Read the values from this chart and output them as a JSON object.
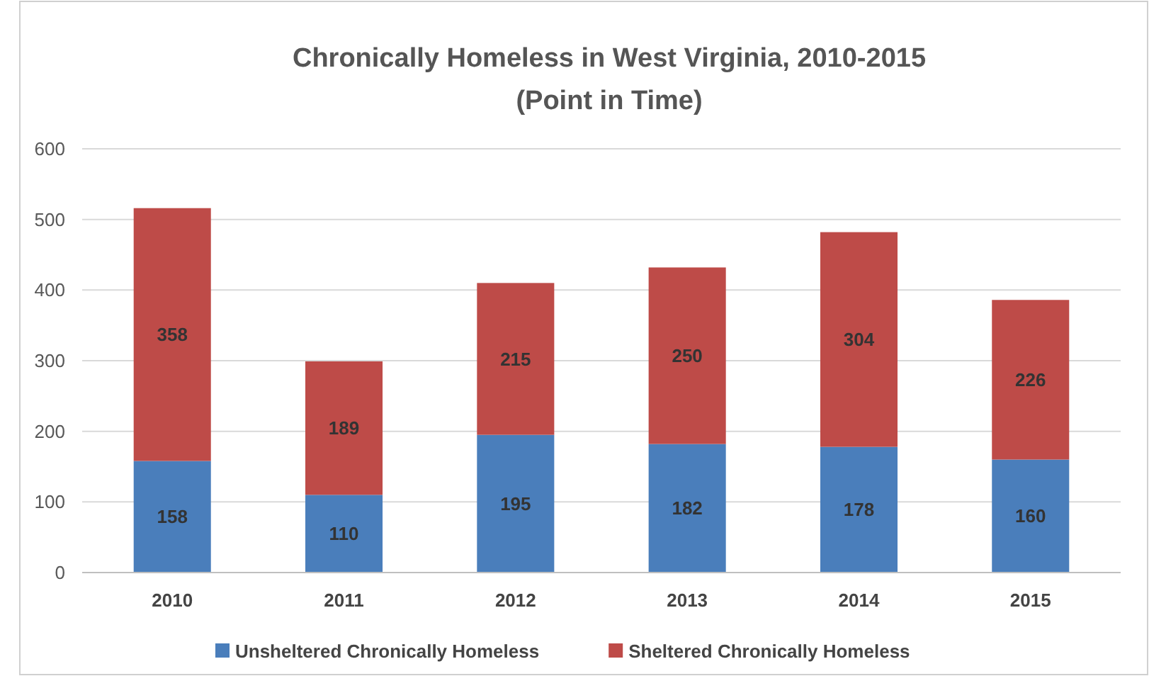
{
  "chart_data": {
    "type": "bar",
    "title": "Chronically Homeless in West Virginia, 2010-2015",
    "subtitle": "(Point in Time)",
    "categories": [
      "2010",
      "2011",
      "2012",
      "2013",
      "2014",
      "2015"
    ],
    "stacked": true,
    "series": [
      {
        "name": "Unsheltered Chronically Homeless",
        "color": "#4a7ebb",
        "values": [
          158,
          110,
          195,
          182,
          178,
          160
        ]
      },
      {
        "name": "Sheltered Chronically Homeless",
        "color": "#be4b48",
        "values": [
          358,
          189,
          215,
          250,
          304,
          226
        ]
      }
    ],
    "ylim": [
      0,
      600
    ],
    "yticks": [
      0,
      100,
      200,
      300,
      400,
      500,
      600
    ],
    "grid": "y",
    "legend": "bottom",
    "data_labels": true
  }
}
